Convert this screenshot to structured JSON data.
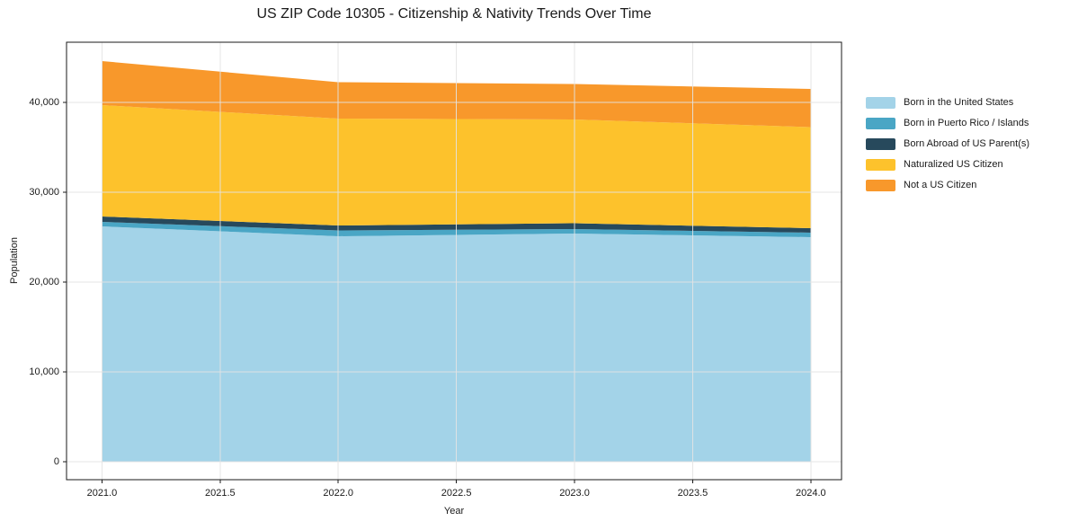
{
  "chart_data": {
    "type": "area",
    "stacked": true,
    "title": "US ZIP Code 10305 - Citizenship & Nativity Trends Over Time",
    "xlabel": "Year",
    "ylabel": "Population",
    "x": [
      2021,
      2022,
      2023,
      2024
    ],
    "series": [
      {
        "name": "Born in the United States",
        "color": "#a3d3e8",
        "values": [
          26200,
          25100,
          25400,
          25000
        ]
      },
      {
        "name": "Born in Puerto Rico / Islands",
        "color": "#4aa6c5",
        "values": [
          500,
          650,
          500,
          500
        ]
      },
      {
        "name": "Born Abroad of US Parent(s)",
        "color": "#27495c",
        "values": [
          600,
          550,
          650,
          500
        ]
      },
      {
        "name": "Naturalized US Citizen",
        "color": "#fdc22c",
        "values": [
          12400,
          11900,
          11550,
          11250
        ]
      },
      {
        "name": "Not a US Citizen",
        "color": "#f8982b",
        "values": [
          4900,
          4050,
          3950,
          4250
        ]
      }
    ],
    "totals": [
      44600,
      42250,
      42050,
      41500
    ],
    "xticks": {
      "values": [
        2021.0,
        2021.5,
        2022.0,
        2022.5,
        2023.0,
        2023.5,
        2024.0
      ],
      "labels": [
        "2021.0",
        "2021.5",
        "2022.0",
        "2022.5",
        "2023.0",
        "2023.5",
        "2024.0"
      ]
    },
    "yticks": {
      "values": [
        0,
        10000,
        20000,
        30000,
        40000
      ],
      "labels": [
        "0",
        "10,000",
        "20,000",
        "30,000",
        "40,000"
      ]
    },
    "xlim": [
      2020.85,
      2024.13
    ],
    "ylim": [
      -2000,
      46700
    ],
    "grid": true,
    "grid_color": "#e4e4e4",
    "frame_color": "#1a1a1a",
    "text_color": "#1a1a1a",
    "background": "#ffffff",
    "legend_position": "right"
  }
}
